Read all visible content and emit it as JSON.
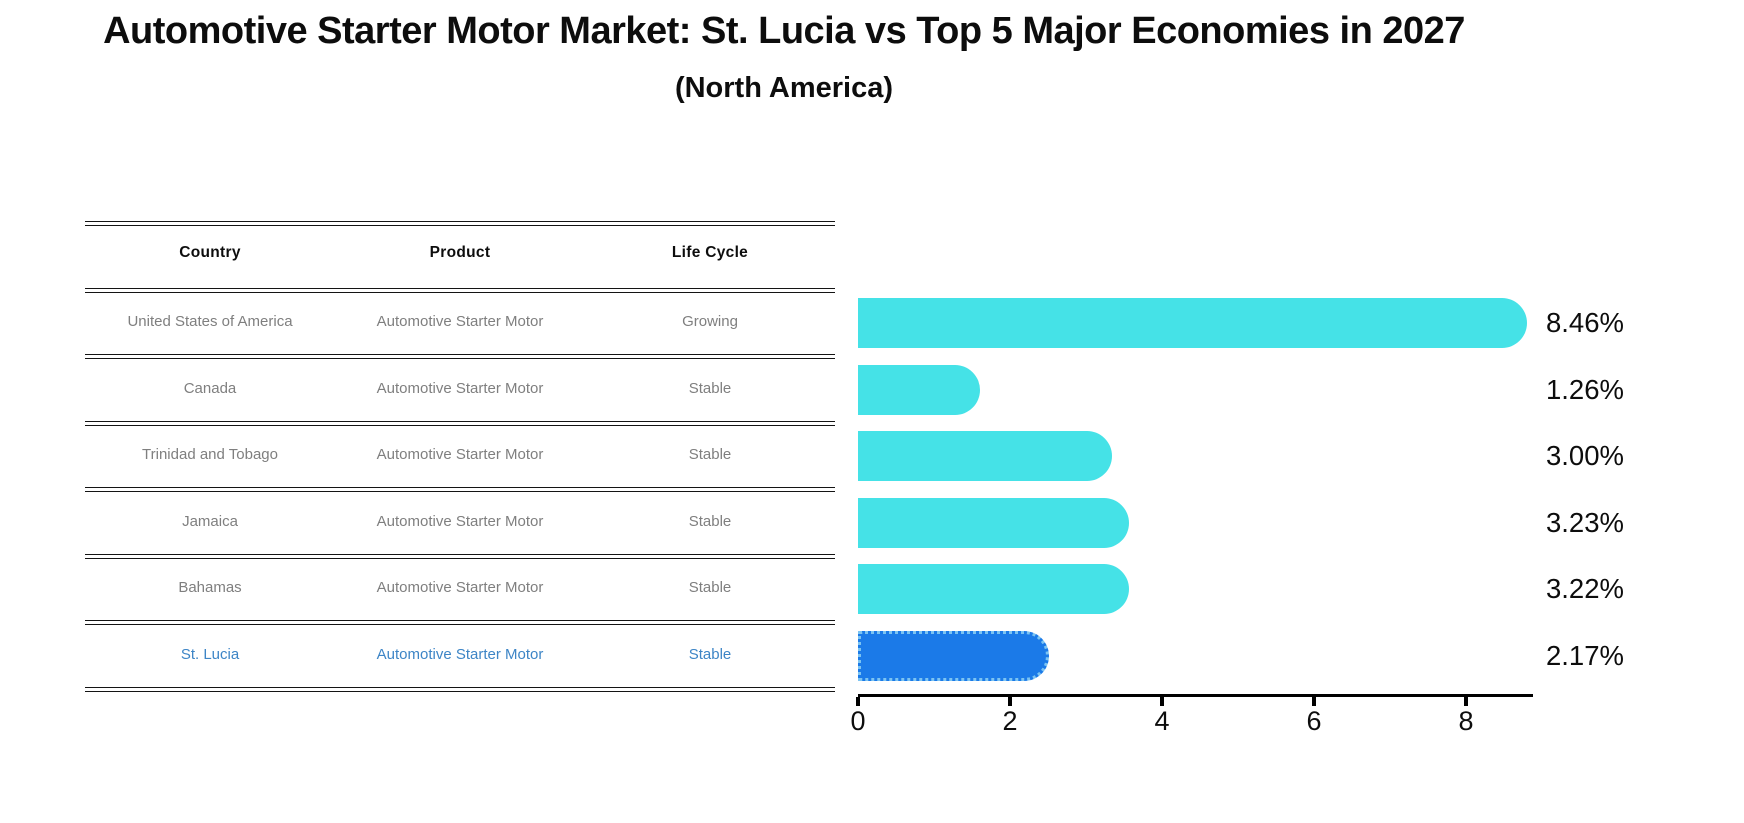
{
  "header": {
    "title": "Automotive Starter Motor Market: St. Lucia vs Top 5 Major Economies in 2027",
    "subtitle": "(North America)"
  },
  "table": {
    "columns": [
      "Country",
      "Product",
      "Life Cycle"
    ],
    "rows": [
      {
        "country": "United States of America",
        "product": "Automotive Starter Motor",
        "life_cycle": "Growing",
        "highlight": false
      },
      {
        "country": "Canada",
        "product": "Automotive Starter Motor",
        "life_cycle": "Stable",
        "highlight": false
      },
      {
        "country": "Trinidad and Tobago",
        "product": "Automotive Starter Motor",
        "life_cycle": "Stable",
        "highlight": false
      },
      {
        "country": "Jamaica",
        "product": "Automotive Starter Motor",
        "life_cycle": "Stable",
        "highlight": false
      },
      {
        "country": "Bahamas",
        "product": "Automotive Starter Motor",
        "life_cycle": "Stable",
        "highlight": false
      },
      {
        "country": "St. Lucia",
        "product": "Automotive Starter Motor",
        "life_cycle": "Stable",
        "highlight": true
      }
    ]
  },
  "chart_data": {
    "type": "bar",
    "orientation": "horizontal",
    "title": "Automotive Starter Motor Market: St. Lucia vs Top 5 Major Economies in 2027 (North America)",
    "categories": [
      "United States of America",
      "Canada",
      "Trinidad and Tobago",
      "Jamaica",
      "Bahamas",
      "St. Lucia"
    ],
    "values": [
      8.46,
      1.26,
      3.0,
      3.23,
      3.22,
      2.17
    ],
    "value_labels": [
      "8.46%",
      "1.26%",
      "3.00%",
      "3.23%",
      "3.22%",
      "2.17%"
    ],
    "x_ticks": [
      "0",
      "2",
      "4",
      "6",
      "8"
    ],
    "x_tick_values": [
      0,
      2,
      4,
      6,
      8
    ],
    "xlim": [
      0,
      8.9
    ],
    "grid": false,
    "legend": "none",
    "bar_color": "#45E2E7",
    "highlight_index": 5,
    "highlight_bar_color": "#1B7AE8",
    "highlight_border_color": "#7CC4F2",
    "highlight_text_color": "#3d85c6",
    "body_text_color": "#7f7f7f",
    "axis_color": "#000000"
  }
}
